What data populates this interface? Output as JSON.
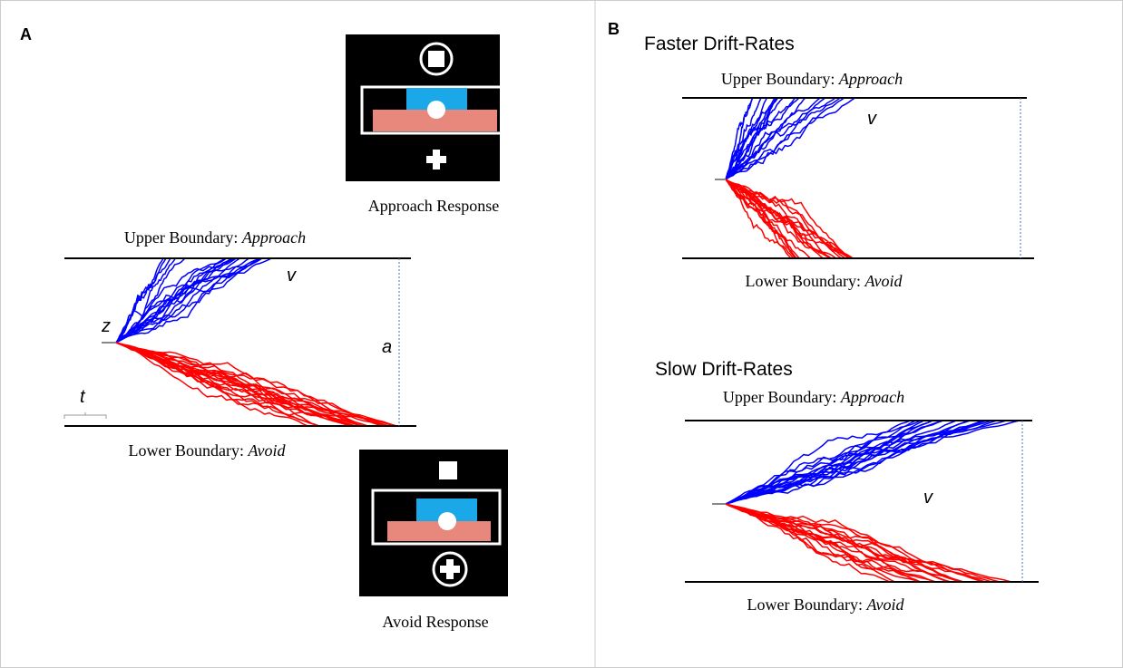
{
  "panel_a": {
    "label": "A",
    "approach_response": "Approach Response",
    "avoid_response": "Avoid Response",
    "upper_boundary": {
      "text": "Upper Boundary:",
      "response": "Approach"
    },
    "lower_boundary": {
      "text": "Lower Boundary:",
      "response": "Avoid"
    },
    "params": {
      "v": "v",
      "z": "z",
      "a": "a",
      "t": "t"
    }
  },
  "panel_b": {
    "label": "B",
    "faster": {
      "title": "Faster Drift-Rates",
      "upper_boundary": {
        "text": "Upper Boundary:",
        "response": "Approach"
      },
      "lower_boundary": {
        "text": "Lower Boundary:",
        "response": "Avoid"
      },
      "v": "v"
    },
    "slow": {
      "title": "Slow Drift-Rates",
      "upper_boundary": {
        "text": "Upper Boundary:",
        "response": "Approach"
      },
      "lower_boundary": {
        "text": "Lower Boundary:",
        "response": "Avoid"
      },
      "v": "v"
    }
  }
}
